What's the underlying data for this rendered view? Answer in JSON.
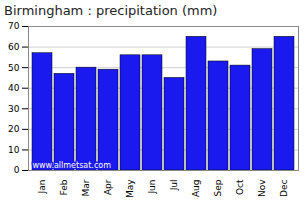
{
  "chart_data": {
    "type": "bar",
    "title": "Birmingham : precipitation (mm)",
    "categories": [
      "Jan",
      "Feb",
      "Mar",
      "Apr",
      "May",
      "Jun",
      "Jul",
      "Aug",
      "Sep",
      "Oct",
      "Nov",
      "Dec"
    ],
    "values": [
      57,
      47,
      50,
      49,
      56,
      56,
      45,
      65,
      53,
      51,
      59,
      65
    ],
    "color": "#1a1aee",
    "ylim": [
      0,
      70
    ],
    "yticks": [
      0,
      10,
      20,
      30,
      40,
      50,
      60,
      70
    ],
    "grid": true,
    "annotations": [
      "www.allmetsat.com"
    ]
  }
}
